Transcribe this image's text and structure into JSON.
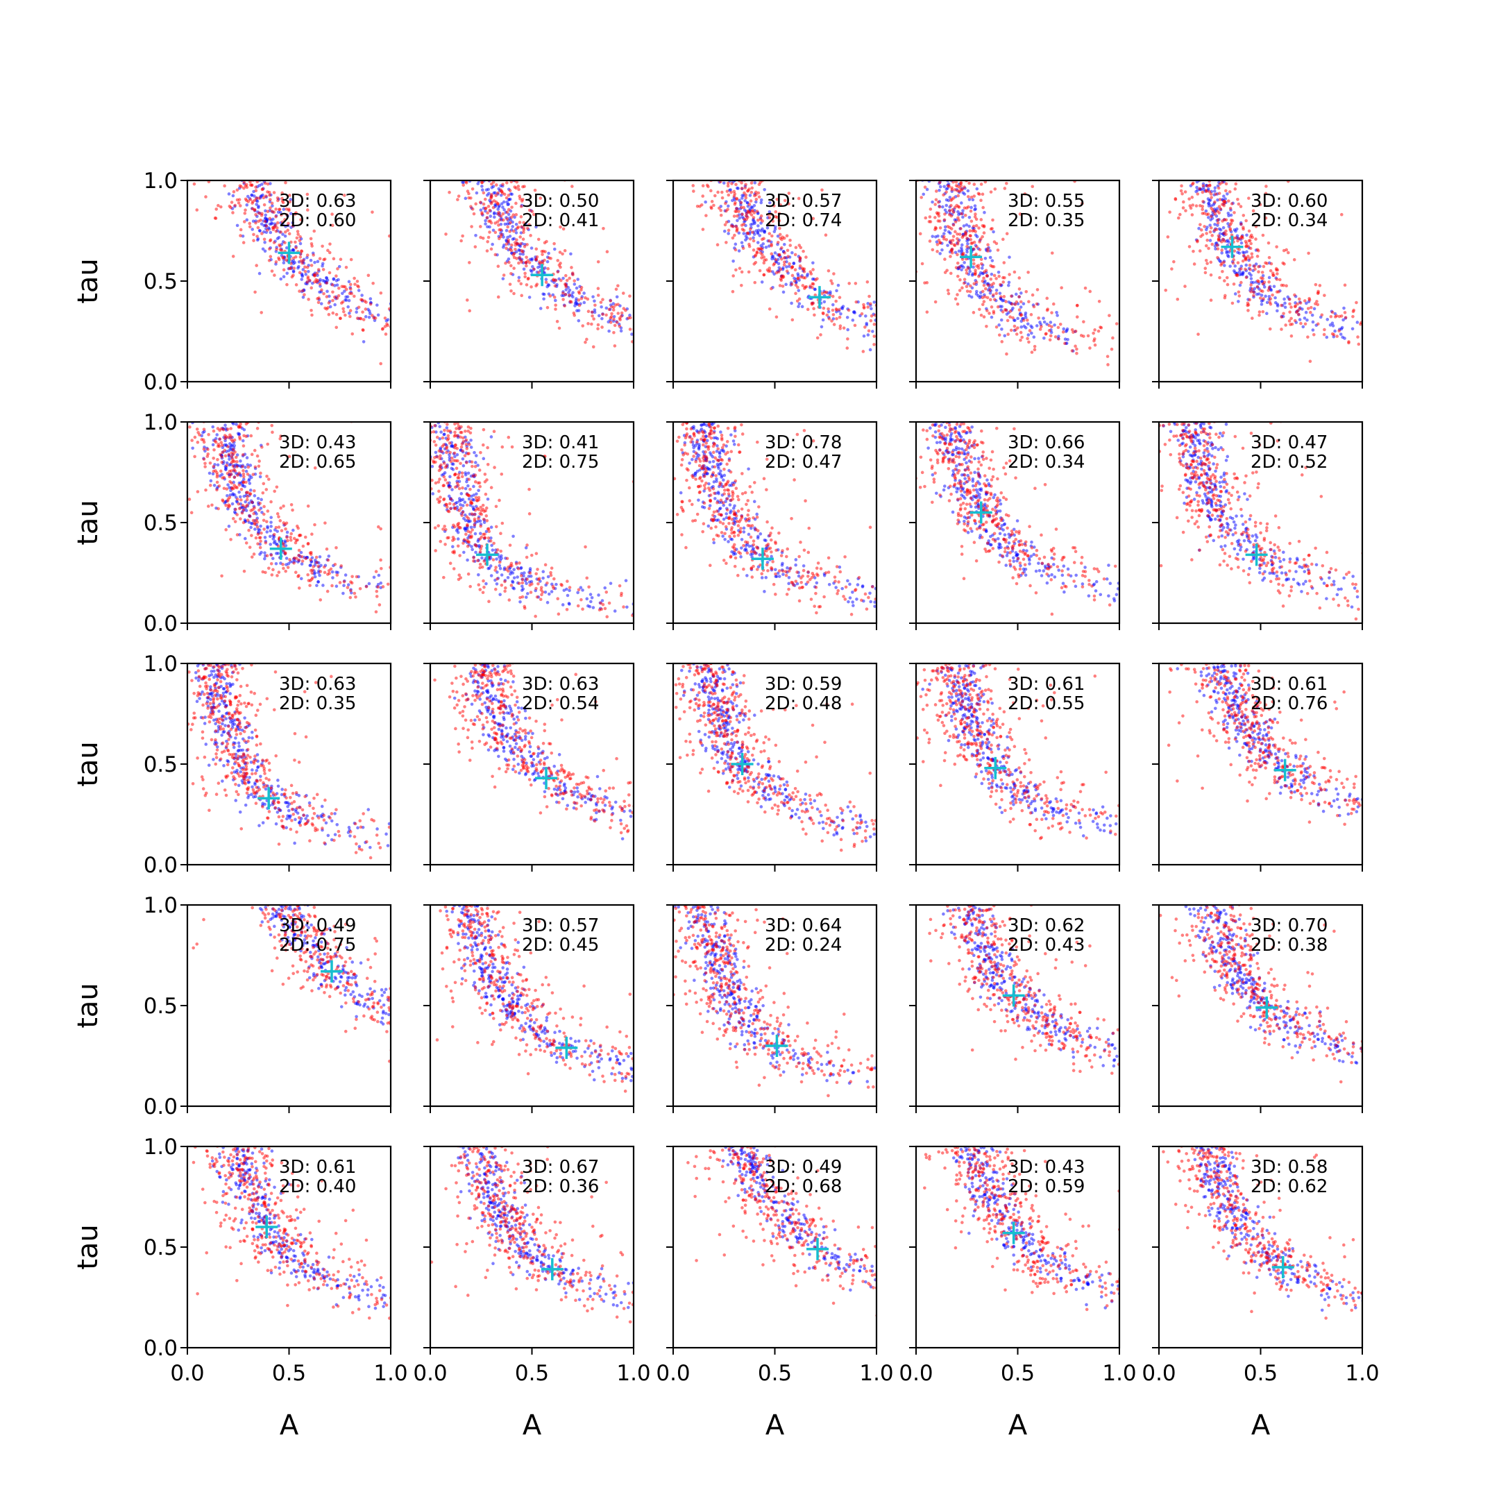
{
  "chart_data": {
    "type": "scatter",
    "layout": "5x5 grid of scatter panels",
    "xlabel": "A",
    "ylabel": "tau",
    "xlim": [
      0,
      1
    ],
    "ylim": [
      0,
      1
    ],
    "xticks": [
      "0.0",
      "0.5",
      "1.0"
    ],
    "yticks": [
      "0.0",
      "0.5",
      "1.0"
    ],
    "grid": false,
    "colors": {
      "series_3d": "#0000ff",
      "series_2d": "#ff0000",
      "marker": "#17becf"
    },
    "panels": [
      {
        "score_3d": "3D: 0.63",
        "score_2d": "2D: 0.60",
        "cross": [
          0.5,
          0.64
        ]
      },
      {
        "score_3d": "3D: 0.50",
        "score_2d": "2D: 0.41",
        "cross": [
          0.55,
          0.53
        ]
      },
      {
        "score_3d": "3D: 0.57",
        "score_2d": "2D: 0.74",
        "cross": [
          0.72,
          0.42
        ]
      },
      {
        "score_3d": "3D: 0.55",
        "score_2d": "2D: 0.35",
        "cross": [
          0.27,
          0.62
        ]
      },
      {
        "score_3d": "3D: 0.60",
        "score_2d": "2D: 0.34",
        "cross": [
          0.36,
          0.67
        ]
      },
      {
        "score_3d": "3D: 0.43",
        "score_2d": "2D: 0.65",
        "cross": [
          0.46,
          0.37
        ]
      },
      {
        "score_3d": "3D: 0.41",
        "score_2d": "2D: 0.75",
        "cross": [
          0.28,
          0.34
        ]
      },
      {
        "score_3d": "3D: 0.78",
        "score_2d": "2D: 0.47",
        "cross": [
          0.44,
          0.32
        ]
      },
      {
        "score_3d": "3D: 0.66",
        "score_2d": "2D: 0.34",
        "cross": [
          0.32,
          0.55
        ]
      },
      {
        "score_3d": "3D: 0.47",
        "score_2d": "2D: 0.52",
        "cross": [
          0.48,
          0.34
        ]
      },
      {
        "score_3d": "3D: 0.63",
        "score_2d": "2D: 0.35",
        "cross": [
          0.4,
          0.33
        ]
      },
      {
        "score_3d": "3D: 0.63",
        "score_2d": "2D: 0.54",
        "cross": [
          0.57,
          0.43
        ]
      },
      {
        "score_3d": "3D: 0.59",
        "score_2d": "2D: 0.48",
        "cross": [
          0.34,
          0.5
        ]
      },
      {
        "score_3d": "3D: 0.61",
        "score_2d": "2D: 0.55",
        "cross": [
          0.39,
          0.48
        ]
      },
      {
        "score_3d": "3D: 0.61",
        "score_2d": "2D: 0.76",
        "cross": [
          0.62,
          0.47
        ]
      },
      {
        "score_3d": "3D: 0.49",
        "score_2d": "2D: 0.75",
        "cross": [
          0.71,
          0.67
        ]
      },
      {
        "score_3d": "3D: 0.57",
        "score_2d": "2D: 0.45",
        "cross": [
          0.67,
          0.29
        ]
      },
      {
        "score_3d": "3D: 0.64",
        "score_2d": "2D: 0.24",
        "cross": [
          0.51,
          0.3
        ]
      },
      {
        "score_3d": "3D: 0.62",
        "score_2d": "2D: 0.43",
        "cross": [
          0.48,
          0.55
        ]
      },
      {
        "score_3d": "3D: 0.70",
        "score_2d": "2D: 0.38",
        "cross": [
          0.53,
          0.49
        ]
      },
      {
        "score_3d": "3D: 0.61",
        "score_2d": "2D: 0.40",
        "cross": [
          0.39,
          0.6
        ]
      },
      {
        "score_3d": "3D: 0.67",
        "score_2d": "2D: 0.36",
        "cross": [
          0.6,
          0.39
        ]
      },
      {
        "score_3d": "3D: 0.49",
        "score_2d": "2D: 0.68",
        "cross": [
          0.71,
          0.49
        ]
      },
      {
        "score_3d": "3D: 0.43",
        "score_2d": "2D: 0.59",
        "cross": [
          0.48,
          0.57
        ]
      },
      {
        "score_3d": "3D: 0.58",
        "score_2d": "2D: 0.62",
        "cross": [
          0.61,
          0.4
        ]
      }
    ]
  }
}
